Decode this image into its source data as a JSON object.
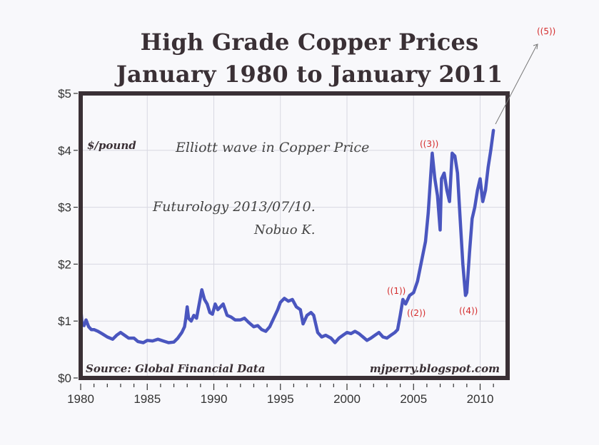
{
  "header": {
    "title_line1": "High Grade Copper Prices",
    "title_line2": "January 1980 to January 2011"
  },
  "annotations": {
    "unit_label": "$/pound",
    "source": "Source: Global Financial Data",
    "website": "mjperry.blogspot.com",
    "handwritten_title": "Elliott wave in Copper Price",
    "handwritten_subtitle": "Futurology 2013/07/10.",
    "handwritten_author": "Nobuo K.",
    "waves": [
      {
        "label": "((1))",
        "year": 2003.8
      },
      {
        "label": "((2))",
        "year": 2004.2
      },
      {
        "label": "((3))",
        "year": 2006.4
      },
      {
        "label": "((4))",
        "year": 2008.9
      },
      {
        "label": "((5))",
        "year": 2012.5
      }
    ]
  },
  "colors": {
    "line": "#4a56bf",
    "frame": "#3a3035",
    "grid": "#d8d8e2",
    "wave_labels": "#d42a2a",
    "title": "#3a3035"
  },
  "chart_data": {
    "type": "line",
    "title": "High Grade Copper Prices January 1980 to January 2011",
    "xlabel": "",
    "ylabel": "$/pound",
    "xlim": [
      1980,
      2011.5
    ],
    "ylim": [
      0,
      5
    ],
    "x_ticks": [
      "1980",
      "1985",
      "1990",
      "1995",
      "2000",
      "2005",
      "2010"
    ],
    "y_ticks": [
      "$0",
      "$1",
      "$2",
      "$3",
      "$4",
      "$5"
    ],
    "grid": true,
    "legend": "none",
    "series": [
      {
        "name": "High Grade Copper ($/pound)",
        "x": [
          1980.0,
          1980.1,
          1980.25,
          1980.4,
          1980.6,
          1980.8,
          1981.0,
          1981.3,
          1981.6,
          1982.0,
          1982.4,
          1982.7,
          1983.0,
          1983.3,
          1983.6,
          1984.0,
          1984.3,
          1984.7,
          1985.0,
          1985.4,
          1985.8,
          1986.2,
          1986.6,
          1987.0,
          1987.3,
          1987.6,
          1987.8,
          1987.9,
          1988.0,
          1988.1,
          1988.3,
          1988.5,
          1988.7,
          1988.9,
          1989.1,
          1989.3,
          1989.5,
          1989.7,
          1989.9,
          1990.1,
          1990.3,
          1990.5,
          1990.7,
          1991.0,
          1991.3,
          1991.6,
          1992.0,
          1992.3,
          1992.6,
          1993.0,
          1993.3,
          1993.6,
          1993.9,
          1994.2,
          1994.5,
          1994.8,
          1995.0,
          1995.3,
          1995.6,
          1995.9,
          1996.2,
          1996.5,
          1996.7,
          1997.0,
          1997.3,
          1997.5,
          1997.8,
          1998.1,
          1998.4,
          1998.8,
          1999.1,
          1999.4,
          1999.7,
          2000.0,
          2000.3,
          2000.6,
          2000.9,
          2001.2,
          2001.5,
          2001.8,
          2002.1,
          2002.4,
          2002.7,
          2003.0,
          2003.3,
          2003.6,
          2003.8,
          2004.0,
          2004.2,
          2004.4,
          2004.7,
          2005.0,
          2005.3,
          2005.6,
          2005.9,
          2006.1,
          2006.3,
          2006.4,
          2006.6,
          2006.8,
          2007.0,
          2007.1,
          2007.3,
          2007.5,
          2007.7,
          2007.9,
          2008.1,
          2008.3,
          2008.5,
          2008.7,
          2008.9,
          2009.0,
          2009.2,
          2009.4,
          2009.6,
          2009.8,
          2010.0,
          2010.2,
          2010.4,
          2010.6,
          2010.8,
          2011.0
        ],
        "values": [
          1.25,
          0.95,
          0.92,
          1.02,
          0.9,
          0.85,
          0.85,
          0.82,
          0.78,
          0.72,
          0.68,
          0.75,
          0.8,
          0.75,
          0.7,
          0.7,
          0.64,
          0.62,
          0.66,
          0.65,
          0.68,
          0.65,
          0.62,
          0.63,
          0.7,
          0.8,
          0.9,
          1.05,
          1.25,
          1.05,
          1.0,
          1.1,
          1.05,
          1.3,
          1.55,
          1.38,
          1.3,
          1.15,
          1.12,
          1.3,
          1.2,
          1.25,
          1.3,
          1.1,
          1.07,
          1.02,
          1.02,
          1.05,
          0.98,
          0.9,
          0.92,
          0.85,
          0.82,
          0.9,
          1.05,
          1.2,
          1.33,
          1.4,
          1.35,
          1.38,
          1.25,
          1.2,
          0.95,
          1.1,
          1.15,
          1.1,
          0.8,
          0.72,
          0.75,
          0.7,
          0.62,
          0.7,
          0.75,
          0.8,
          0.78,
          0.82,
          0.78,
          0.72,
          0.66,
          0.7,
          0.75,
          0.8,
          0.72,
          0.7,
          0.75,
          0.8,
          0.85,
          1.1,
          1.38,
          1.3,
          1.45,
          1.5,
          1.7,
          2.05,
          2.4,
          2.9,
          3.6,
          3.95,
          3.5,
          3.2,
          2.6,
          3.5,
          3.6,
          3.3,
          3.1,
          3.95,
          3.9,
          3.6,
          2.8,
          2.0,
          1.45,
          1.5,
          2.2,
          2.8,
          3.0,
          3.3,
          3.5,
          3.1,
          3.3,
          3.7,
          4.0,
          4.35
        ]
      }
    ],
    "annotations": [
      "Elliott wave in Copper Price",
      "Futurology 2013/07/10.",
      "Nobuo K.",
      "((1))",
      "((2))",
      "((3))",
      "((4))",
      "((5))",
      "$/pound",
      "Source: Global Financial Data",
      "mjperry.blogspot.com"
    ]
  }
}
